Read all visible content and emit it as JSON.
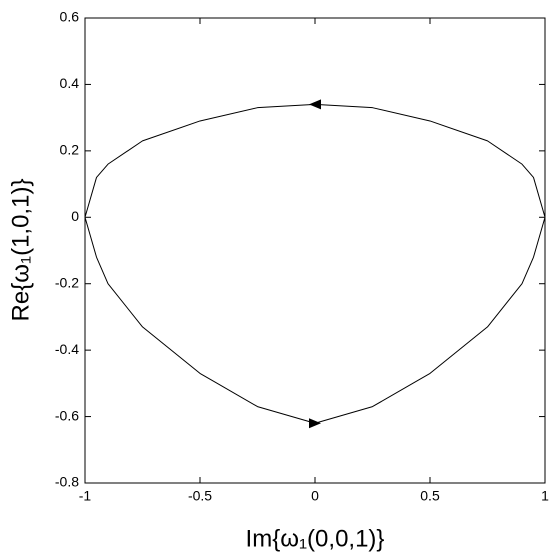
{
  "chart_data": {
    "type": "line",
    "x_label": "Im{ω₁(0,0,1)}",
    "y_label": "Re{ω₁(1,0,1)}",
    "x": [
      1,
      0.95,
      0.9,
      0.75,
      0.5,
      0.25,
      0,
      -0.25,
      -0.5,
      -0.75,
      -0.9,
      -0.95,
      -1,
      -0.95,
      -0.9,
      -0.75,
      -0.5,
      -0.25,
      0,
      0.25,
      0.5,
      0.75,
      0.9,
      0.95,
      1
    ],
    "series": [
      {
        "color": "#000000",
        "values": [
          0,
          0.12,
          0.16,
          0.23,
          0.29,
          0.33,
          0.34,
          0.33,
          0.29,
          0.23,
          0.16,
          0.12,
          0,
          -0.12,
          -0.2,
          -0.33,
          -0.47,
          -0.57,
          -0.62,
          -0.57,
          -0.47,
          -0.33,
          -0.2,
          -0.12,
          0
        ]
      }
    ],
    "xlim": [
      -1,
      1
    ],
    "ylim": [
      -0.8,
      0.6
    ],
    "xticks": [
      -1,
      -0.5,
      0,
      0.5,
      1
    ],
    "yticks": [
      -0.8,
      -0.6,
      -0.4,
      -0.2,
      0,
      0.2,
      0.4,
      0.6
    ],
    "grid": false
  }
}
